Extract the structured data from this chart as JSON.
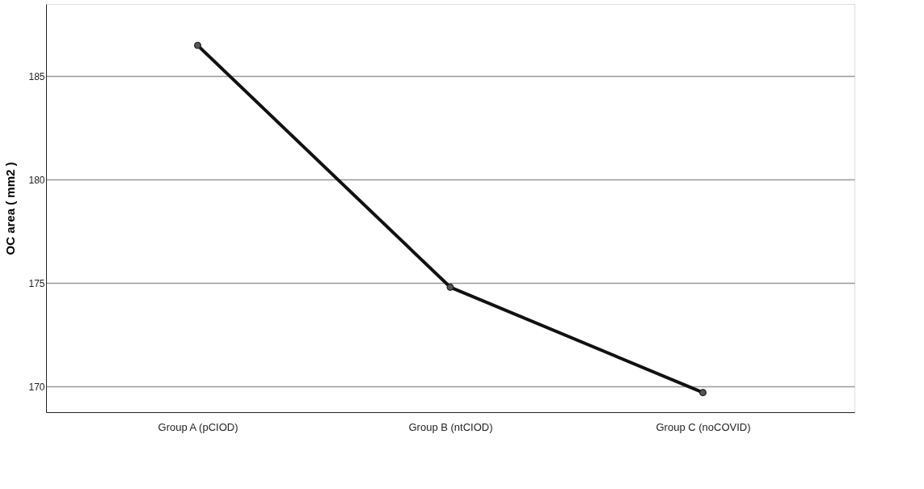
{
  "chart_data": {
    "type": "line",
    "ylabel": "OC area ( mm2 )",
    "categories": [
      "Group A (pCIOD)",
      "Group B (ntCIOD)",
      "Group C (noCOVID)"
    ],
    "series": [
      {
        "color": "#111111",
        "values": [
          186.5,
          174.8,
          169.7
        ]
      }
    ],
    "ylim": [
      168.75,
      188.5
    ],
    "yticks": [
      170,
      175,
      180,
      185
    ],
    "grid": "y",
    "marker": "circle",
    "line_style": "solid"
  }
}
